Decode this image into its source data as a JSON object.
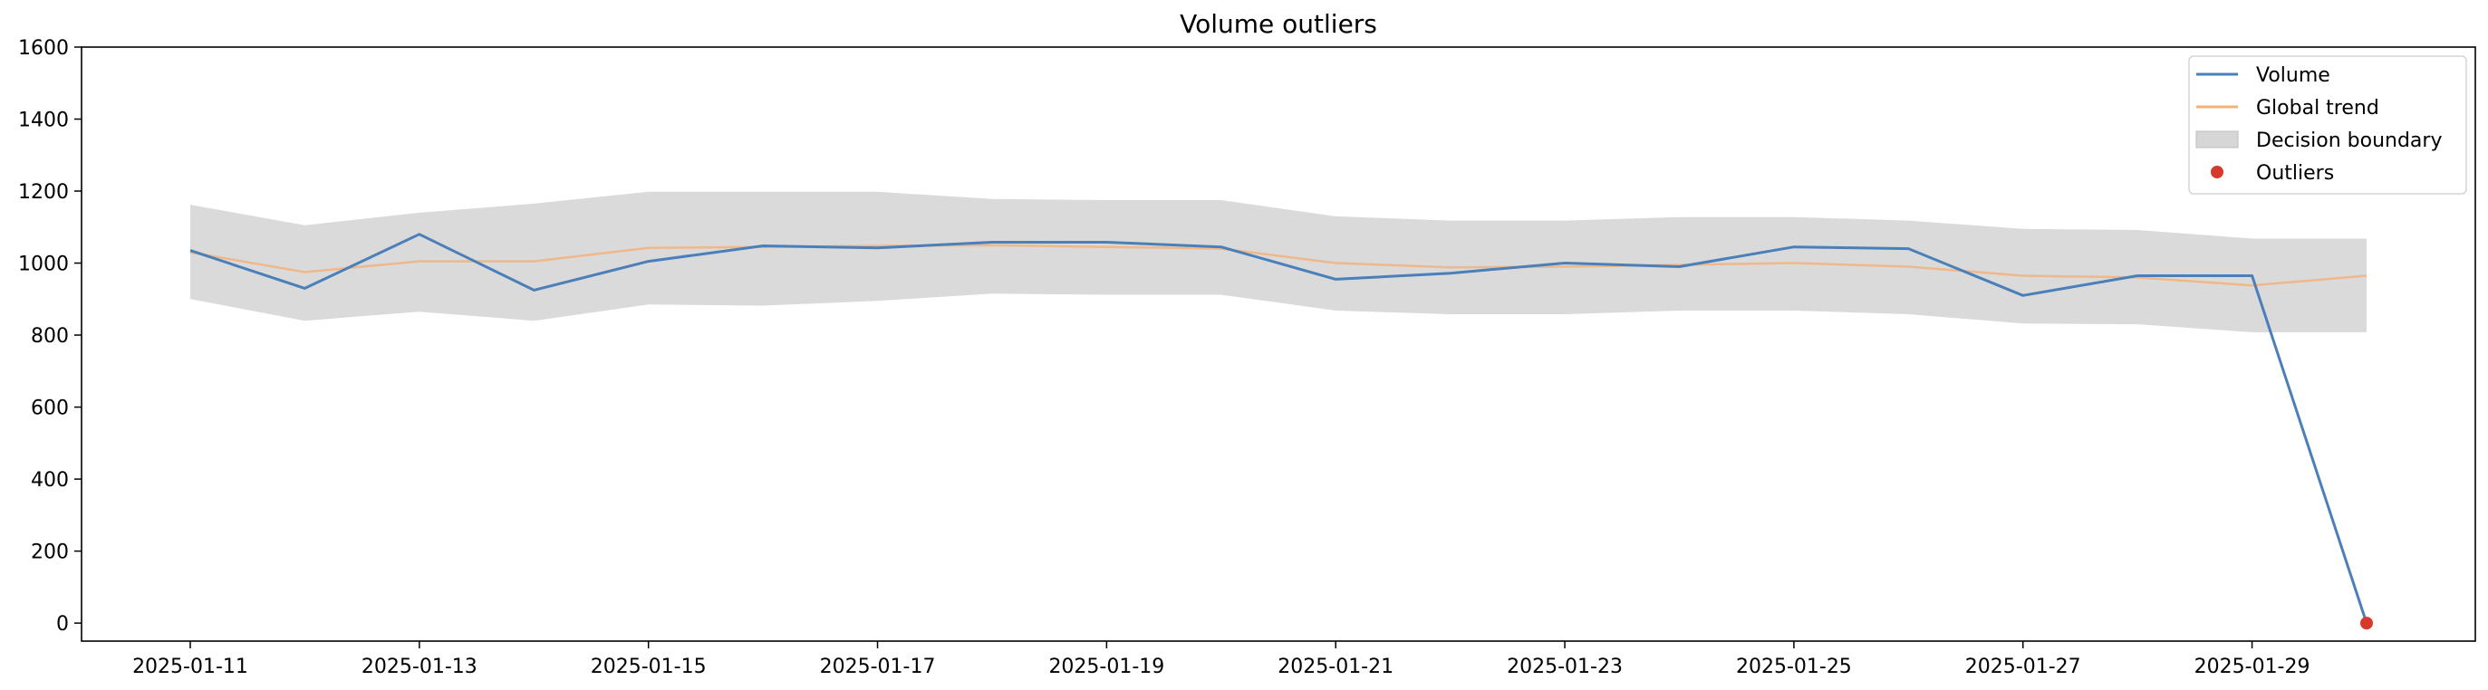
{
  "chart_data": {
    "type": "line",
    "title": "Volume outliers",
    "xlabel": "",
    "ylabel": "",
    "ylim": [
      -50,
      1600
    ],
    "yticks": [
      0,
      200,
      400,
      600,
      800,
      1000,
      1200,
      1400,
      1600
    ],
    "x": [
      "2025-01-11",
      "2025-01-12",
      "2025-01-13",
      "2025-01-14",
      "2025-01-15",
      "2025-01-16",
      "2025-01-17",
      "2025-01-18",
      "2025-01-19",
      "2025-01-20",
      "2025-01-21",
      "2025-01-22",
      "2025-01-23",
      "2025-01-24",
      "2025-01-25",
      "2025-01-26",
      "2025-01-27",
      "2025-01-28",
      "2025-01-29",
      "2025-01-30"
    ],
    "xticks": [
      "2025-01-11",
      "2025-01-13",
      "2025-01-15",
      "2025-01-17",
      "2025-01-19",
      "2025-01-21",
      "2025-01-23",
      "2025-01-25",
      "2025-01-27",
      "2025-01-29"
    ],
    "series": [
      {
        "name": "Volume",
        "kind": "line",
        "color": "#4a7fb9",
        "values": [
          1035,
          930,
          1080,
          925,
          1005,
          1048,
          1042,
          1058,
          1058,
          1045,
          955,
          972,
          1000,
          990,
          1045,
          1040,
          910,
          965,
          965,
          0
        ]
      },
      {
        "name": "Global trend",
        "kind": "line",
        "color": "#f2b27a",
        "values": [
          1030,
          975,
          1005,
          1005,
          1042,
          1045,
          1048,
          1050,
          1045,
          1040,
          1000,
          988,
          990,
          995,
          1000,
          990,
          965,
          960,
          938,
          965
        ]
      },
      {
        "name": "Decision boundary",
        "kind": "band",
        "color": "#d6d6d6",
        "lower": [
          900,
          840,
          865,
          840,
          885,
          882,
          895,
          915,
          912,
          912,
          868,
          858,
          858,
          868,
          868,
          858,
          832,
          830,
          808,
          808
        ],
        "upper": [
          1162,
          1105,
          1140,
          1165,
          1198,
          1198,
          1198,
          1178,
          1175,
          1175,
          1130,
          1118,
          1118,
          1128,
          1128,
          1118,
          1095,
          1092,
          1068,
          1068
        ]
      },
      {
        "name": "Outliers",
        "kind": "scatter",
        "color": "#d73a2a",
        "points": [
          {
            "x": "2025-01-30",
            "y": 0
          }
        ]
      }
    ],
    "legend": {
      "position": "top-right",
      "entries": [
        "Volume",
        "Global trend",
        "Decision boundary",
        "Outliers"
      ]
    }
  }
}
